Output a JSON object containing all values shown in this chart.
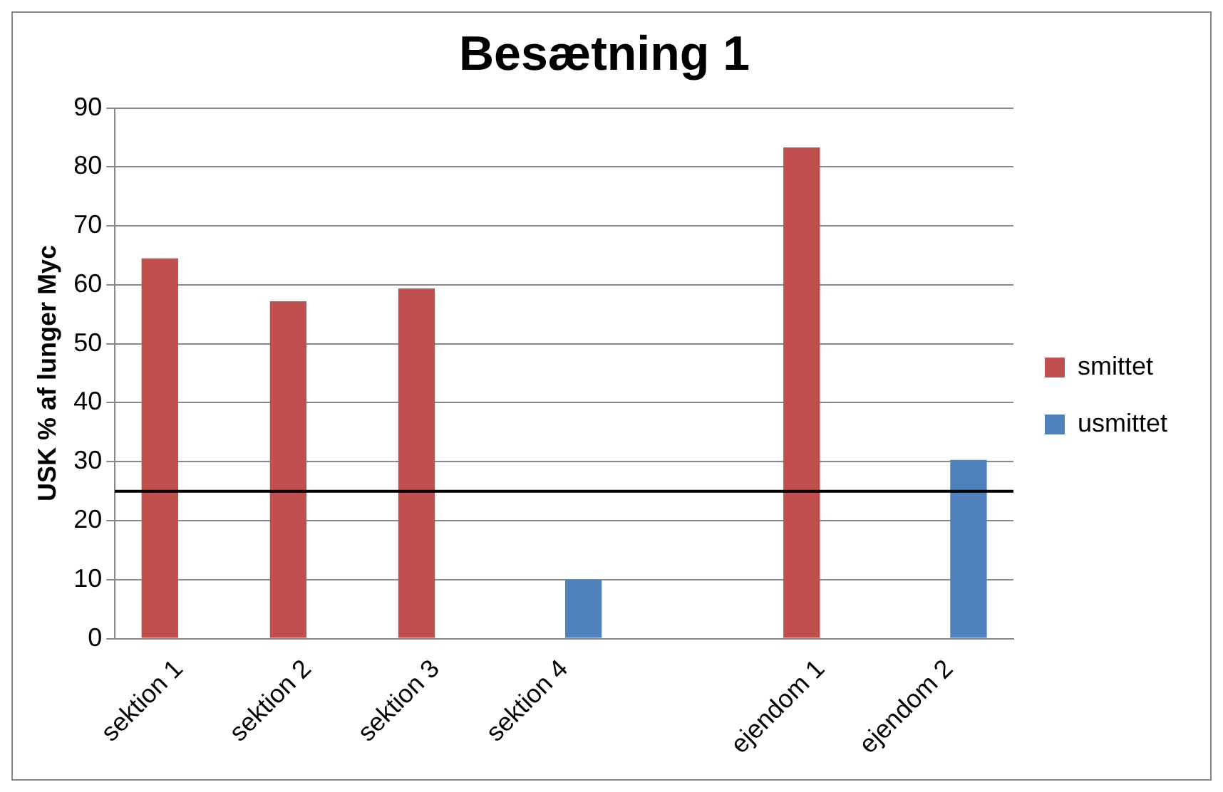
{
  "chart_data": {
    "type": "bar",
    "title": "Besætning 1",
    "ylabel": "USK % af lunger Myc",
    "categories": [
      "sektion 1",
      "sektion 2",
      "sektion 3",
      "sektion 4",
      null,
      "ejendom 1",
      "ejendom 2"
    ],
    "series": [
      {
        "name": "smittet",
        "color": "#c0504d",
        "values": [
          64.5,
          57.2,
          59.4,
          null,
          null,
          83.3,
          null
        ]
      },
      {
        "name": "usmittet",
        "color": "#4f81bd",
        "values": [
          null,
          null,
          null,
          10,
          null,
          null,
          30.3
        ]
      }
    ],
    "ylim": [
      0,
      90
    ],
    "yticks": [
      0,
      10,
      20,
      30,
      40,
      50,
      60,
      70,
      80,
      90
    ],
    "grid": "y",
    "legend": "right",
    "ref_lines": [
      {
        "axis": "y",
        "value": 25,
        "color": "#000000"
      }
    ]
  }
}
